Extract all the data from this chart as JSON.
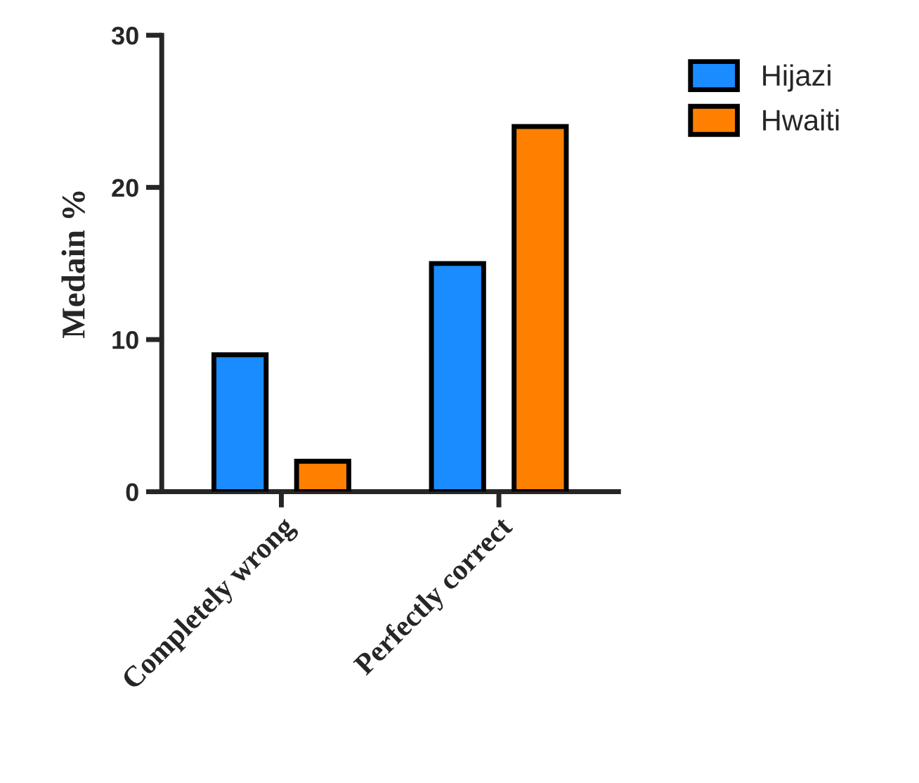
{
  "chart_data": {
    "type": "bar",
    "ylabel": "Medain %",
    "categories": [
      "Completely wrong",
      "Perfectly correct"
    ],
    "series": [
      {
        "name": "Hijazi",
        "color": "#1a8cff",
        "values": [
          9,
          15
        ]
      },
      {
        "name": "Hwaiti",
        "color": "#ff8000",
        "values": [
          2,
          24
        ]
      }
    ],
    "ylim": [
      0,
      30
    ],
    "yticks": [
      0,
      10,
      20,
      30
    ],
    "grid": false,
    "legend": "top right"
  }
}
